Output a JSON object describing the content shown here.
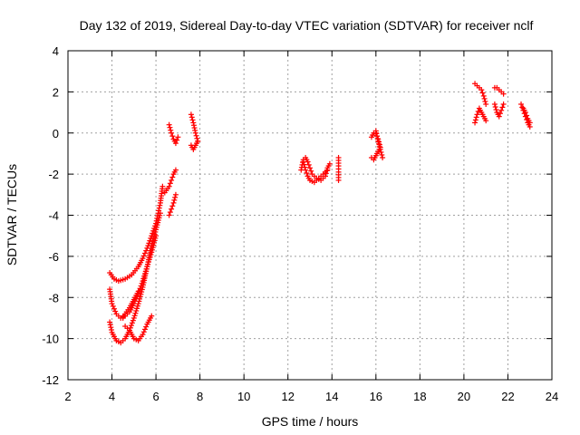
{
  "chart_data": {
    "type": "scatter",
    "title": "Day 132 of 2019, Sidereal Day-to-day VTEC variation (SDTVAR) for receiver nclf",
    "xlabel": "GPS time / hours",
    "ylabel": "SDTVAR / TECUs",
    "xlim": [
      2,
      24
    ],
    "ylim": [
      -12,
      4
    ],
    "x_ticks": [
      2,
      4,
      6,
      8,
      10,
      12,
      14,
      16,
      18,
      20,
      22,
      24
    ],
    "y_ticks": [
      -12,
      -10,
      -8,
      -6,
      -4,
      -2,
      0,
      2,
      4
    ],
    "grid": true,
    "marker": "plus",
    "color": "#ff0000",
    "series": [
      {
        "name": "SDTVAR",
        "segments": [
          {
            "x": [
              3.9,
              4.1,
              4.3,
              4.6,
              4.9,
              5.2,
              5.4,
              5.6,
              5.8,
              6.0,
              6.1,
              6.2,
              6.3
            ],
            "y": [
              -6.8,
              -7.1,
              -7.2,
              -7.1,
              -6.9,
              -6.5,
              -6.1,
              -5.6,
              -5.0,
              -4.4,
              -3.9,
              -3.4,
              -2.6
            ]
          },
          {
            "x": [
              3.9,
              4.0,
              4.2,
              4.4,
              4.6,
              4.8,
              5.0,
              5.2,
              5.4,
              5.6,
              5.8,
              6.0
            ],
            "y": [
              -7.6,
              -8.3,
              -8.8,
              -9.0,
              -8.9,
              -8.7,
              -8.3,
              -7.8,
              -7.2,
              -6.5,
              -5.8,
              -5.0
            ]
          },
          {
            "x": [
              3.9,
              4.0,
              4.2,
              4.4,
              4.6,
              4.8,
              5.0,
              5.2,
              5.4,
              5.6,
              5.8,
              6.0,
              6.2
            ],
            "y": [
              -9.2,
              -9.7,
              -10.1,
              -10.2,
              -10.0,
              -9.6,
              -9.0,
              -8.3,
              -7.5,
              -6.5,
              -5.5,
              -4.7,
              -3.9
            ]
          },
          {
            "x": [
              4.6,
              4.8,
              5.0,
              5.2,
              5.4,
              5.6,
              5.8
            ],
            "y": [
              -9.4,
              -9.6,
              -10.0,
              -10.1,
              -9.8,
              -9.3,
              -8.9
            ]
          },
          {
            "x": [
              4.5,
              4.6,
              4.8,
              5.0,
              5.2
            ],
            "y": [
              -9.0,
              -8.8,
              -8.5,
              -8.1,
              -7.7
            ]
          },
          {
            "x": [
              6.4,
              6.6,
              6.7,
              6.8,
              6.9
            ],
            "y": [
              -2.9,
              -2.6,
              -2.3,
              -2.0,
              -1.8
            ]
          },
          {
            "x": [
              6.6,
              6.7,
              6.8,
              6.9
            ],
            "y": [
              -4.0,
              -3.7,
              -3.4,
              -3.0
            ]
          },
          {
            "x": [
              6.6,
              6.7,
              6.8,
              6.9,
              7.0
            ],
            "y": [
              0.4,
              0.0,
              -0.3,
              -0.5,
              -0.2
            ]
          },
          {
            "x": [
              7.6,
              7.7,
              7.8,
              7.9
            ],
            "y": [
              0.9,
              0.5,
              0.0,
              -0.4
            ]
          },
          {
            "x": [
              7.6,
              7.7,
              7.8,
              7.9
            ],
            "y": [
              -0.6,
              -0.8,
              -0.6,
              -0.4
            ]
          },
          {
            "x": [
              12.6,
              12.7,
              12.8,
              12.9,
              13.0,
              13.1,
              13.3,
              13.5,
              13.7,
              13.8,
              13.9
            ],
            "y": [
              -1.8,
              -1.3,
              -1.2,
              -1.4,
              -1.7,
              -2.0,
              -2.2,
              -2.3,
              -2.1,
              -1.7,
              -1.5
            ]
          },
          {
            "x": [
              12.7,
              12.8,
              12.9,
              13.0,
              13.2,
              13.4,
              13.6,
              13.8
            ],
            "y": [
              -1.4,
              -1.8,
              -2.1,
              -2.3,
              -2.4,
              -2.2,
              -2.0,
              -1.8
            ]
          },
          {
            "x": [
              14.3,
              14.3,
              14.3,
              14.3
            ],
            "y": [
              -1.2,
              -1.6,
              -1.9,
              -2.3
            ]
          },
          {
            "x": [
              15.8,
              15.9,
              16.0,
              16.1,
              16.2,
              16.1,
              16.0,
              15.9,
              15.8
            ],
            "y": [
              -0.2,
              0.0,
              0.0,
              -0.3,
              -0.7,
              -0.9,
              -1.1,
              -1.3,
              -1.2
            ]
          },
          {
            "x": [
              16.0,
              16.1,
              16.2,
              16.3
            ],
            "y": [
              0.1,
              -0.4,
              -0.8,
              -1.2
            ]
          },
          {
            "x": [
              20.5,
              20.6,
              20.8,
              20.9,
              21.0
            ],
            "y": [
              2.4,
              2.3,
              2.1,
              1.8,
              1.4
            ]
          },
          {
            "x": [
              20.5,
              20.6,
              20.7,
              20.8,
              20.9,
              21.0
            ],
            "y": [
              0.5,
              0.9,
              1.2,
              1.0,
              0.8,
              0.6
            ]
          },
          {
            "x": [
              21.4,
              21.5,
              21.6,
              21.7,
              21.8
            ],
            "y": [
              2.2,
              2.2,
              2.1,
              2.0,
              1.9
            ]
          },
          {
            "x": [
              21.4,
              21.5,
              21.6,
              21.7,
              21.8
            ],
            "y": [
              1.4,
              1.0,
              0.8,
              1.1,
              1.4
            ]
          },
          {
            "x": [
              22.6,
              22.7,
              22.8,
              22.9,
              23.0
            ],
            "y": [
              1.4,
              1.1,
              0.8,
              0.5,
              0.3
            ]
          },
          {
            "x": [
              22.7,
              22.8,
              22.9,
              23.0
            ],
            "y": [
              1.2,
              1.0,
              0.7,
              0.5
            ]
          }
        ]
      }
    ]
  }
}
